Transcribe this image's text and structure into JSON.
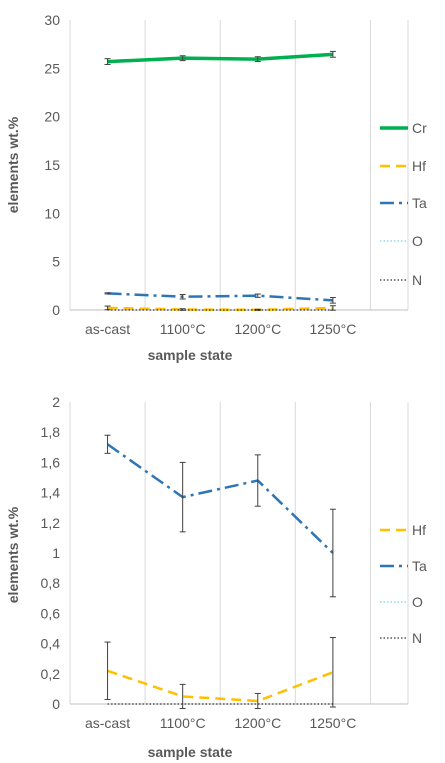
{
  "chart_data": [
    {
      "type": "line",
      "categories": [
        "as-cast",
        "1100°C",
        "1200°C",
        "1250°C"
      ],
      "xlabel": "sample state",
      "ylabel": "elements wt.%",
      "ylim": [
        0,
        30
      ],
      "yticks": [
        "0",
        "5",
        "10",
        "15",
        "20",
        "25",
        "30"
      ],
      "grid": "vertical",
      "legend_position": "right",
      "series": [
        {
          "name": "Cr",
          "color": "#00b050",
          "style": "solid",
          "values": [
            25.7,
            26.05,
            25.95,
            26.45
          ],
          "errors": [
            0.3,
            0.25,
            0.25,
            0.3
          ]
        },
        {
          "name": "Hf",
          "color": "#ffc000",
          "style": "dash",
          "values": [
            0.22,
            0.05,
            0.02,
            0.21
          ],
          "errors": [
            0.19,
            0.08,
            0.05,
            0.23
          ]
        },
        {
          "name": "Ta",
          "color": "#2e75b6",
          "style": "longdashdot",
          "values": [
            1.72,
            1.37,
            1.48,
            1.0
          ],
          "errors": [
            0.06,
            0.23,
            0.17,
            0.29
          ]
        },
        {
          "name": "O",
          "color": "#5bc0eb",
          "style": "dot",
          "values": [
            0,
            0,
            0,
            0
          ],
          "errors": [
            0,
            0,
            0,
            0
          ]
        },
        {
          "name": "N",
          "color": "#000000",
          "style": "dot",
          "values": [
            0,
            0,
            0,
            0
          ],
          "errors": [
            0,
            0,
            0,
            0
          ]
        }
      ]
    },
    {
      "type": "line",
      "categories": [
        "as-cast",
        "1100°C",
        "1200°C",
        "1250°C"
      ],
      "xlabel": "sample state",
      "ylabel": "elements wt.%",
      "ylim": [
        0,
        2
      ],
      "yticks": [
        "0",
        "0,2",
        "0,4",
        "0,6",
        "0,8",
        "1",
        "1,2",
        "1,4",
        "1,6",
        "1,8",
        "2"
      ],
      "grid": "vertical",
      "legend_position": "right",
      "series": [
        {
          "name": "Hf",
          "color": "#ffc000",
          "style": "dash",
          "values": [
            0.22,
            0.05,
            0.02,
            0.21
          ],
          "errors": [
            0.19,
            0.08,
            0.05,
            0.23
          ]
        },
        {
          "name": "Ta",
          "color": "#2e75b6",
          "style": "longdashdot",
          "values": [
            1.72,
            1.37,
            1.48,
            1.0
          ],
          "errors": [
            0.06,
            0.23,
            0.17,
            0.29
          ]
        },
        {
          "name": "O",
          "color": "#5bc0eb",
          "style": "dot",
          "values": [
            0,
            0,
            0,
            0
          ],
          "errors": [
            0,
            0,
            0,
            0
          ]
        },
        {
          "name": "N",
          "color": "#000000",
          "style": "dot",
          "values": [
            0,
            0,
            0,
            0
          ],
          "errors": [
            0,
            0,
            0,
            0
          ]
        }
      ]
    }
  ]
}
